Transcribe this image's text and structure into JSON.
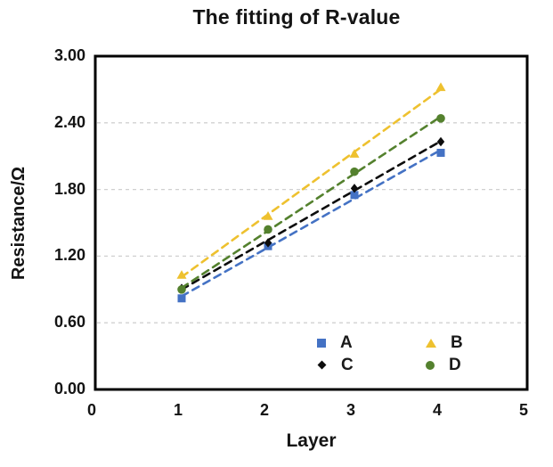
{
  "chart_data": {
    "type": "scatter",
    "title": "The fitting of R-value",
    "xlabel": "Layer",
    "ylabel": "Resistance/Ω",
    "xlim": [
      0,
      5
    ],
    "ylim": [
      0,
      3
    ],
    "xticks": [
      "0",
      "1",
      "2",
      "3",
      "4",
      "5"
    ],
    "yticks": [
      "3.00",
      "2.40",
      "1.80",
      "1.20",
      "0.60",
      "0.00"
    ],
    "gridlines_y": [
      0.6,
      1.2,
      1.8,
      2.4
    ],
    "grid_style": "horizontal dashed light-gray",
    "x": [
      1,
      2,
      3,
      4
    ],
    "series": [
      {
        "name": "A",
        "marker": "square",
        "color": "#4472C4",
        "values": [
          0.82,
          1.29,
          1.75,
          2.13
        ],
        "trendline": "dashed"
      },
      {
        "name": "B",
        "marker": "triangle",
        "color": "#EEC12F",
        "values": [
          1.03,
          1.56,
          2.12,
          2.72
        ],
        "trendline": "dashed"
      },
      {
        "name": "C",
        "marker": "diamond",
        "color": "#0D0D0D",
        "values": [
          0.91,
          1.32,
          1.81,
          2.23
        ],
        "trendline": "dashed"
      },
      {
        "name": "D",
        "marker": "circle",
        "color": "#54812E",
        "values": [
          0.9,
          1.44,
          1.96,
          2.44
        ],
        "trendline": "dashed"
      }
    ],
    "legend": {
      "position": "inside bottom-center",
      "columns": 2,
      "entries": [
        "A",
        "B",
        "C",
        "D"
      ]
    }
  },
  "styles": {
    "background": "#ffffff",
    "axis_color": "#000000",
    "grid_color": "#d0d0d0",
    "text_color": "#141414"
  }
}
